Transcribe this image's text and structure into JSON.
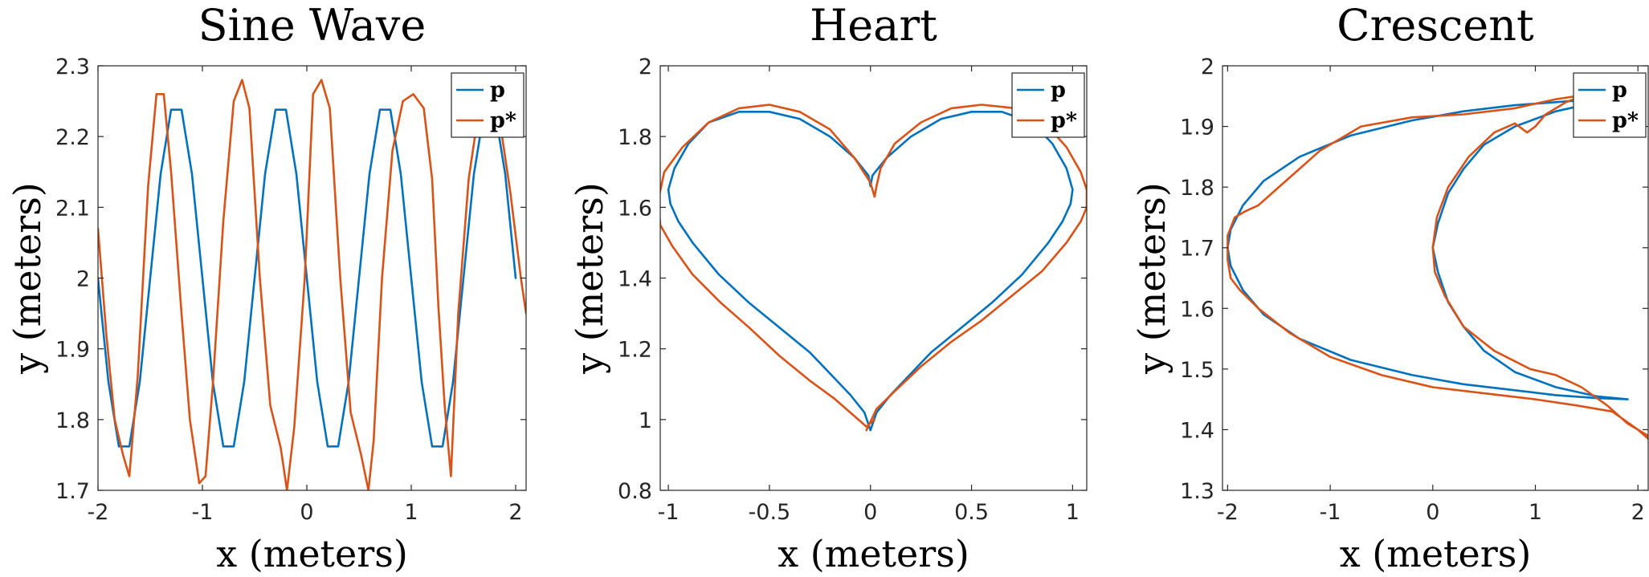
{
  "colors": {
    "p": "#0072BD",
    "p_star": "#D95319"
  },
  "chart_data": [
    {
      "type": "line",
      "title": "Sine Wave",
      "xlabel": "x (meters)",
      "ylabel": "y (meters)",
      "xlim": [
        -2,
        2.1
      ],
      "ylim": [
        1.7,
        2.3
      ],
      "xticks": [
        -2,
        -1,
        0,
        1,
        2
      ],
      "yticks": [
        1.7,
        1.8,
        1.9,
        2.0,
        2.1,
        2.2,
        2.3
      ],
      "xtick_labels": [
        "-2",
        "-1",
        "0",
        "1",
        "2"
      ],
      "ytick_labels": [
        "1.7",
        "1.8",
        "1.9",
        "2",
        "2.1",
        "2.2",
        "2.3"
      ],
      "legend": "top-right",
      "series": [
        {
          "name": "p",
          "x": [
            -2.0,
            -1.9,
            -1.8,
            -1.7,
            -1.6,
            -1.5,
            -1.4,
            -1.3,
            -1.2,
            -1.1,
            -1.0,
            -0.9,
            -0.8,
            -0.7,
            -0.6,
            -0.5,
            -0.4,
            -0.3,
            -0.2,
            -0.1,
            0.0,
            0.1,
            0.2,
            0.3,
            0.4,
            0.5,
            0.6,
            0.7,
            0.8,
            0.9,
            1.0,
            1.1,
            1.2,
            1.3,
            1.4,
            1.5,
            1.6,
            1.7,
            1.8,
            1.9,
            2.0
          ],
          "y": [
            2.0,
            1.853,
            1.762,
            1.762,
            1.853,
            2.0,
            2.147,
            2.238,
            2.238,
            2.147,
            2.0,
            1.853,
            1.762,
            1.762,
            1.853,
            2.0,
            2.147,
            2.238,
            2.238,
            2.147,
            2.0,
            1.853,
            1.762,
            1.762,
            1.853,
            2.0,
            2.147,
            2.238,
            2.238,
            2.147,
            2.0,
            1.853,
            1.762,
            1.762,
            1.853,
            2.0,
            2.147,
            2.238,
            2.238,
            2.147,
            2.0
          ]
        },
        {
          "name": "p*",
          "x": [
            -2.0,
            -1.92,
            -1.84,
            -1.76,
            -1.7,
            -1.62,
            -1.52,
            -1.44,
            -1.37,
            -1.3,
            -1.2,
            -1.12,
            -1.03,
            -0.97,
            -0.9,
            -0.8,
            -0.7,
            -0.62,
            -0.55,
            -0.45,
            -0.35,
            -0.25,
            -0.19,
            -0.12,
            -0.02,
            0.06,
            0.14,
            0.22,
            0.32,
            0.42,
            0.52,
            0.59,
            0.64,
            0.72,
            0.82,
            0.92,
            1.02,
            1.12,
            1.2,
            1.26,
            1.32,
            1.38,
            1.45,
            1.55,
            1.65,
            1.75,
            1.85,
            1.95,
            2.05,
            2.1
          ],
          "y": [
            2.07,
            1.92,
            1.8,
            1.75,
            1.72,
            1.86,
            2.13,
            2.26,
            2.26,
            2.15,
            1.95,
            1.8,
            1.71,
            1.72,
            1.85,
            2.08,
            2.25,
            2.28,
            2.24,
            2.0,
            1.82,
            1.76,
            1.7,
            1.79,
            2.0,
            2.26,
            2.28,
            2.24,
            2.0,
            1.81,
            1.75,
            1.7,
            1.77,
            2.0,
            2.18,
            2.25,
            2.26,
            2.24,
            2.14,
            1.96,
            1.82,
            1.72,
            1.95,
            2.14,
            2.24,
            2.26,
            2.22,
            2.12,
            2.0,
            1.95
          ]
        }
      ]
    },
    {
      "type": "line",
      "title": "Heart",
      "xlabel": "x (meters)",
      "ylabel": "y (meters)",
      "xlim": [
        -1.04,
        1.07
      ],
      "ylim": [
        0.8,
        2.0
      ],
      "xticks": [
        -1,
        -0.5,
        0,
        0.5,
        1
      ],
      "yticks": [
        0.8,
        1.0,
        1.2,
        1.4,
        1.6,
        1.8,
        2.0
      ],
      "xtick_labels": [
        "-1",
        "-0.5",
        "0",
        "0.5",
        "1"
      ],
      "ytick_labels": [
        "0.8",
        "1",
        "1.2",
        "1.4",
        "1.6",
        "1.8",
        "2"
      ],
      "legend": "top-right",
      "series": [
        {
          "name": "p",
          "x": [
            0.0,
            0.03,
            0.1,
            0.2,
            0.3,
            0.45,
            0.6,
            0.75,
            0.88,
            0.95,
            0.99,
            1.0,
            0.97,
            0.9,
            0.8,
            0.65,
            0.5,
            0.35,
            0.2,
            0.08,
            0.01,
            0.0,
            -0.01,
            -0.08,
            -0.2,
            -0.35,
            -0.5,
            -0.65,
            -0.8,
            -0.9,
            -0.97,
            -1.0,
            -0.99,
            -0.95,
            -0.88,
            -0.75,
            -0.6,
            -0.45,
            -0.3,
            -0.2,
            -0.1,
            -0.03,
            0.0
          ],
          "y": [
            0.97,
            1.02,
            1.07,
            1.13,
            1.19,
            1.26,
            1.33,
            1.41,
            1.5,
            1.56,
            1.61,
            1.65,
            1.71,
            1.78,
            1.84,
            1.87,
            1.87,
            1.85,
            1.8,
            1.74,
            1.69,
            1.66,
            1.69,
            1.74,
            1.8,
            1.85,
            1.87,
            1.87,
            1.84,
            1.78,
            1.71,
            1.65,
            1.61,
            1.56,
            1.5,
            1.41,
            1.33,
            1.26,
            1.19,
            1.13,
            1.07,
            1.02,
            0.97
          ]
        },
        {
          "name": "p*",
          "x": [
            -0.02,
            0.03,
            0.12,
            0.25,
            0.4,
            0.55,
            0.7,
            0.85,
            0.97,
            1.04,
            1.07,
            1.07,
            1.04,
            0.97,
            0.86,
            0.72,
            0.55,
            0.4,
            0.25,
            0.12,
            0.05,
            0.03,
            0.02,
            0.0,
            -0.08,
            -0.2,
            -0.35,
            -0.5,
            -0.65,
            -0.8,
            -0.93,
            -1.02,
            -1.05,
            -1.04,
            -0.98,
            -0.88,
            -0.74,
            -0.6,
            -0.45,
            -0.3,
            -0.18,
            -0.08,
            -0.02,
            0.02
          ],
          "y": [
            0.97,
            1.03,
            1.08,
            1.15,
            1.22,
            1.28,
            1.35,
            1.42,
            1.5,
            1.56,
            1.6,
            1.65,
            1.7,
            1.77,
            1.84,
            1.88,
            1.89,
            1.88,
            1.84,
            1.78,
            1.71,
            1.66,
            1.63,
            1.67,
            1.74,
            1.82,
            1.87,
            1.89,
            1.88,
            1.84,
            1.77,
            1.7,
            1.62,
            1.55,
            1.49,
            1.41,
            1.33,
            1.26,
            1.18,
            1.11,
            1.06,
            1.01,
            0.98,
            1.0
          ]
        }
      ]
    },
    {
      "type": "line",
      "title": "Crescent",
      "xlabel": "x (meters)",
      "ylabel": "y (meters)",
      "xlim": [
        -2.05,
        2.1
      ],
      "ylim": [
        1.3,
        2.0
      ],
      "xticks": [
        -2,
        -1,
        0,
        1,
        2
      ],
      "yticks": [
        1.3,
        1.4,
        1.5,
        1.6,
        1.7,
        1.8,
        1.9,
        2.0
      ],
      "xtick_labels": [
        "-2",
        "-1",
        "0",
        "1",
        "2"
      ],
      "ytick_labels": [
        "1.3",
        "1.4",
        "1.5",
        "1.6",
        "1.7",
        "1.8",
        "1.9",
        "2"
      ],
      "legend": "top-right",
      "series": [
        {
          "name": "p",
          "x": [
            1.9,
            1.6,
            1.2,
            0.8,
            0.5,
            0.3,
            0.15,
            0.05,
            0.0,
            0.05,
            0.15,
            0.3,
            0.5,
            0.8,
            1.2,
            1.6,
            1.9,
            1.6,
            1.2,
            0.8,
            0.3,
            -0.2,
            -0.8,
            -1.3,
            -1.65,
            -1.85,
            -1.97,
            -2.0,
            -1.97,
            -1.85,
            -1.65,
            -1.3,
            -0.8,
            -0.2,
            0.3,
            0.8,
            1.2,
            1.6,
            1.9
          ],
          "y": [
            1.45,
            1.455,
            1.47,
            1.495,
            1.53,
            1.57,
            1.61,
            1.66,
            1.7,
            1.74,
            1.79,
            1.83,
            1.87,
            1.9,
            1.925,
            1.94,
            1.95,
            1.945,
            1.94,
            1.935,
            1.925,
            1.91,
            1.885,
            1.85,
            1.81,
            1.77,
            1.73,
            1.7,
            1.67,
            1.63,
            1.59,
            1.55,
            1.515,
            1.49,
            1.475,
            1.465,
            1.457,
            1.452,
            1.45
          ]
        },
        {
          "name": "p*",
          "x": [
            2.1,
            1.9,
            1.7,
            1.45,
            1.2,
            0.95,
            0.6,
            0.3,
            0.12,
            0.02,
            0.0,
            0.04,
            0.15,
            0.35,
            0.6,
            0.8,
            0.92,
            1.0,
            1.1,
            1.3,
            1.6,
            1.9,
            1.6,
            1.2,
            0.8,
            0.3,
            -0.2,
            -0.7,
            -1.1,
            -1.5,
            -1.7,
            -1.83,
            -1.93,
            -2.0,
            -2.0,
            -1.97,
            -1.88,
            -1.7,
            -1.4,
            -1.0,
            -0.5,
            0.0,
            0.5,
            1.0,
            1.4,
            1.75,
            2.0,
            2.1
          ],
          "y": [
            1.39,
            1.41,
            1.44,
            1.47,
            1.49,
            1.5,
            1.53,
            1.57,
            1.62,
            1.66,
            1.7,
            1.75,
            1.8,
            1.85,
            1.89,
            1.905,
            1.89,
            1.9,
            1.92,
            1.94,
            1.96,
            1.965,
            1.955,
            1.945,
            1.93,
            1.92,
            1.915,
            1.9,
            1.86,
            1.8,
            1.77,
            1.76,
            1.75,
            1.72,
            1.68,
            1.65,
            1.63,
            1.6,
            1.56,
            1.52,
            1.49,
            1.47,
            1.46,
            1.45,
            1.44,
            1.43,
            1.4,
            1.385
          ]
        }
      ]
    }
  ]
}
